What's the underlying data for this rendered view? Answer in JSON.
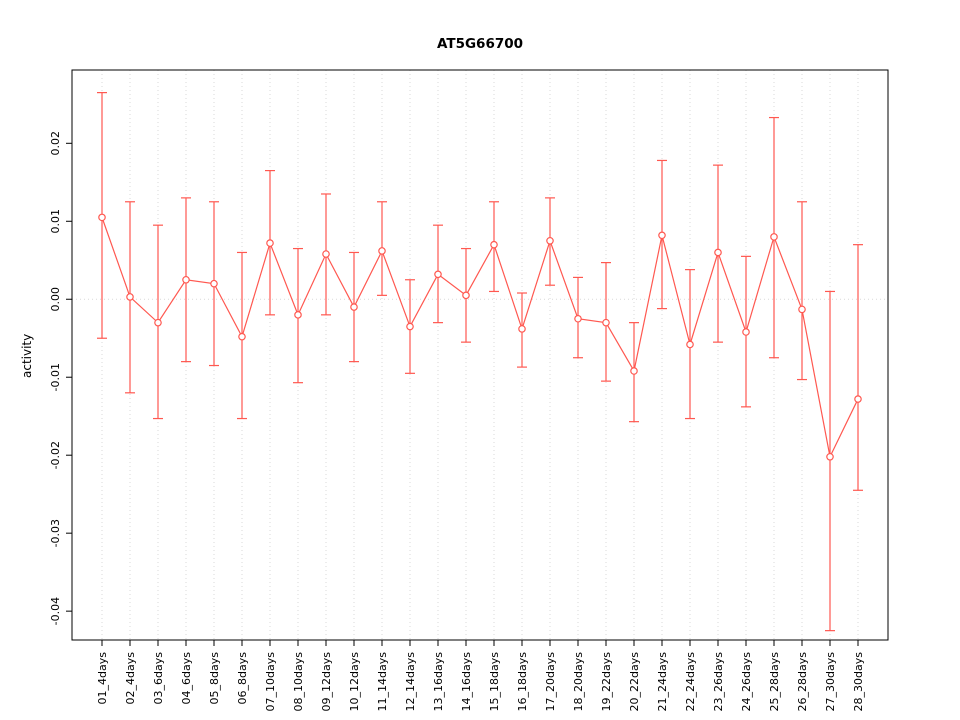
{
  "chart_data": {
    "type": "line",
    "title": "AT5G66700",
    "xlabel": "",
    "ylabel": "activity",
    "legend": "none",
    "grid": "vertical-dotted-per-category plus dotted zero line",
    "categories": [
      "01_4days",
      "02_4days",
      "03_6days",
      "04_6days",
      "05_8days",
      "06_8days",
      "07_10days",
      "08_10days",
      "09_12days",
      "10_12days",
      "11_14days",
      "12_14days",
      "13_16days",
      "14_16days",
      "15_18days",
      "16_18days",
      "17_20days",
      "18_20days",
      "19_22days",
      "20_22days",
      "21_24days",
      "22_24days",
      "23_26days",
      "24_26days",
      "25_28days",
      "26_28days",
      "27_30days",
      "28_30days"
    ],
    "series": [
      {
        "name": "activity",
        "values": [
          0.0105,
          0.0003,
          -0.003,
          0.0025,
          0.002,
          -0.0048,
          0.0072,
          -0.002,
          0.0058,
          -0.001,
          0.0062,
          -0.0035,
          0.0032,
          0.0005,
          0.007,
          -0.0038,
          0.0075,
          -0.0025,
          -0.003,
          -0.0092,
          0.0082,
          -0.0058,
          0.006,
          -0.0042,
          0.008,
          -0.0013,
          -0.0202,
          -0.0128
        ]
      }
    ],
    "error_lower": [
      -0.005,
      -0.012,
      -0.0153,
      -0.008,
      -0.0085,
      -0.0153,
      -0.002,
      -0.0107,
      -0.002,
      -0.008,
      0.0005,
      -0.0095,
      -0.003,
      -0.0055,
      0.001,
      -0.0087,
      0.0018,
      -0.0075,
      -0.0105,
      -0.0157,
      -0.0012,
      -0.0153,
      -0.0055,
      -0.0138,
      -0.0075,
      -0.0103,
      -0.0425,
      -0.0245
    ],
    "error_upper": [
      0.0265,
      0.0125,
      0.0095,
      0.013,
      0.0125,
      0.006,
      0.0165,
      0.0065,
      0.0135,
      0.006,
      0.0125,
      0.0025,
      0.0095,
      0.0065,
      0.0125,
      0.0008,
      0.013,
      0.0028,
      0.0047,
      -0.003,
      0.0178,
      0.0038,
      0.0172,
      0.0055,
      0.0233,
      0.0125,
      0.001,
      0.007
    ],
    "y_ticks": [
      -0.04,
      -0.03,
      -0.02,
      -0.01,
      0,
      0.01,
      0.02
    ],
    "y_tick_labels": [
      "-0.04",
      "-0.03",
      "-0.02",
      "-0.01",
      "0.00",
      "0.01",
      "0.02"
    ],
    "ylim": [
      -0.0437,
      0.0294
    ],
    "colors": {
      "series": "#ff5850",
      "grid": "#d9d9d9",
      "axis": "#000000",
      "background": "#ffffff"
    }
  }
}
